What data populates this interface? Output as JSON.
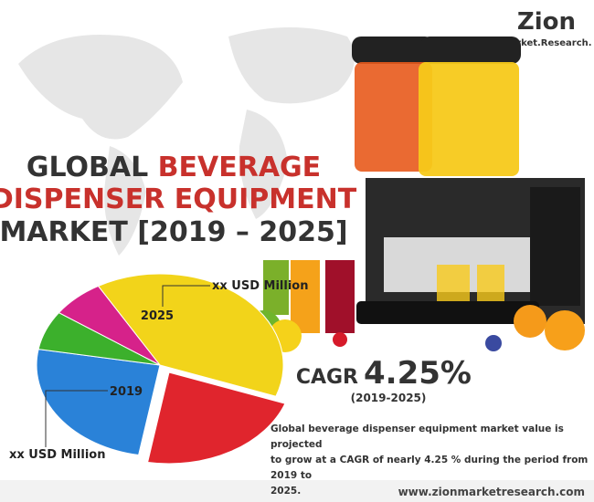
{
  "logo": {
    "name": "Zion",
    "tagline": "Market.Research."
  },
  "title": {
    "line1": {
      "dark": "GLOBAL",
      "accent": "BEVERAGE"
    },
    "line2": "DISPENSER EQUIPMENT",
    "line3": "MARKET [2019 – 2025]"
  },
  "pie": {
    "label_2025": "2025",
    "value_2025": "xx USD Million",
    "label_2019": "2019",
    "value_2019": "xx USD Million"
  },
  "cagr": {
    "label": "CAGR",
    "value": "4.25%",
    "period": "(2019-2025)"
  },
  "description": [
    "Global beverage dispenser equipment market value is projected",
    "to grow at a CAGR of nearly 4.25 % during the period from 2019 to",
    "2025."
  ],
  "footer": "www.zionmarketresearch.com"
}
